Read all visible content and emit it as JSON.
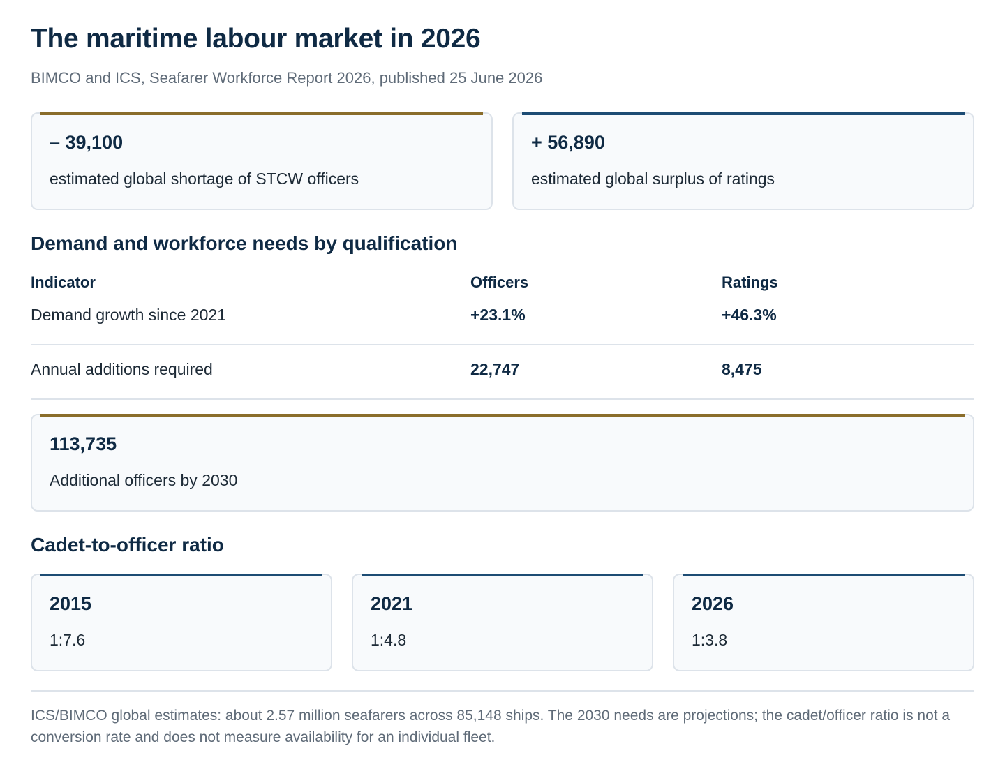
{
  "header": {
    "title": "The maritime labour market in 2026",
    "subtitle": "BIMCO and ICS, Seafarer Workforce Report 2026, published 25 June 2026"
  },
  "summary_cards": [
    {
      "value": "– 39,100",
      "label": "estimated global shortage of STCW officers",
      "accent": "#8a6d2b"
    },
    {
      "value": "+ 56,890",
      "label": "estimated global surplus of ratings",
      "accent": "#1d4c74"
    }
  ],
  "demand_section": {
    "heading": "Demand and workforce needs by qualification",
    "columns": [
      "Indicator",
      "Officers",
      "Ratings"
    ],
    "rows": [
      {
        "indicator": "Demand growth since 2021",
        "officers": "+23.1%",
        "ratings": "+46.3%"
      },
      {
        "indicator": "Annual additions required",
        "officers": "22,747",
        "ratings": "8,475"
      }
    ],
    "highlight": {
      "value": "113,735",
      "label": "Additional officers by 2030",
      "accent": "#8a6d2b"
    }
  },
  "ratio_section": {
    "heading": "Cadet-to-officer ratio",
    "cards": [
      {
        "year": "2015",
        "ratio": "1:7.6"
      },
      {
        "year": "2021",
        "ratio": "1:4.8"
      },
      {
        "year": "2026",
        "ratio": "1:3.8"
      }
    ],
    "accent": "#1d4c74"
  },
  "footnote": "ICS/BIMCO global estimates: about 2.57 million seafarers across 85,148 ships. The 2030 needs are projections; the cadet/officer ratio is not a conversion rate and does not measure availability for an individual fleet."
}
